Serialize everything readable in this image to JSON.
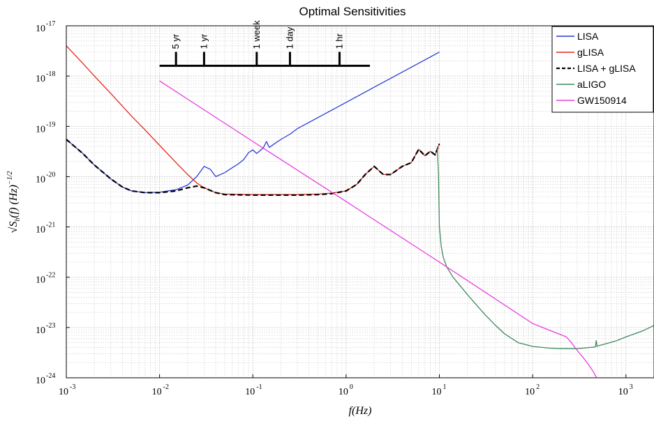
{
  "chart_data": {
    "type": "line",
    "title": "Optimal Sensitivities",
    "xlabel": "f(Hz)",
    "ylabel_base": "√S",
    "ylabel_sub": "h",
    "ylabel_rest": "(f) (Hz)",
    "ylabel_exp": "−1/2",
    "x_scale": "log",
    "y_scale": "log",
    "xlim": [
      0.001,
      2000
    ],
    "ylim": [
      1e-24,
      1e-17
    ],
    "grid": true,
    "legend_position": "top-right",
    "x_ticks": [
      {
        "value": 0.001,
        "base": "10",
        "exp": "-3"
      },
      {
        "value": 0.01,
        "base": "10",
        "exp": "-2"
      },
      {
        "value": 0.1,
        "base": "10",
        "exp": "-1"
      },
      {
        "value": 1,
        "base": "10",
        "exp": "0"
      },
      {
        "value": 10,
        "base": "10",
        "exp": "1"
      },
      {
        "value": 100,
        "base": "10",
        "exp": "2"
      },
      {
        "value": 1000,
        "base": "10",
        "exp": "3"
      }
    ],
    "y_ticks": [
      {
        "value": 1e-17,
        "base": "10",
        "exp": "-17"
      },
      {
        "value": 1e-18,
        "base": "10",
        "exp": "-18"
      },
      {
        "value": 1e-19,
        "base": "10",
        "exp": "-19"
      },
      {
        "value": 1e-20,
        "base": "10",
        "exp": "-20"
      },
      {
        "value": 1e-21,
        "base": "10",
        "exp": "-21"
      },
      {
        "value": 1e-22,
        "base": "10",
        "exp": "-22"
      },
      {
        "value": 1e-23,
        "base": "10",
        "exp": "-23"
      },
      {
        "value": 1e-24,
        "base": "10",
        "exp": "-24"
      }
    ],
    "timeline": {
      "x_range": [
        0.01,
        1.8
      ],
      "y": 1.6e-18,
      "marks": [
        {
          "x": 0.015,
          "label": "5 yr"
        },
        {
          "x": 0.03,
          "label": "1 yr"
        },
        {
          "x": 0.11,
          "label": "1 week"
        },
        {
          "x": 0.25,
          "label": "1 day"
        },
        {
          "x": 0.85,
          "label": "1 hr"
        }
      ]
    },
    "series": [
      {
        "name": "LISA",
        "color": "#2b3cd6",
        "dash": "",
        "x": [
          0.001,
          0.0015,
          0.002,
          0.003,
          0.004,
          0.005,
          0.007,
          0.01,
          0.015,
          0.02,
          0.025,
          0.03,
          0.035,
          0.04,
          0.05,
          0.06,
          0.07,
          0.08,
          0.09,
          0.1,
          0.11,
          0.12,
          0.13,
          0.14,
          0.15,
          0.17,
          0.2,
          0.25,
          0.3,
          0.5,
          1,
          2,
          3,
          5,
          7,
          10
        ],
        "y": [
          5.5e-20,
          2.9e-20,
          1.7e-20,
          9e-21,
          6.2e-21,
          5.2e-21,
          4.8e-21,
          4.9e-21,
          5.5e-21,
          6.8e-21,
          1e-20,
          1.6e-20,
          1.4e-20,
          1e-20,
          1.2e-20,
          1.5e-20,
          1.8e-20,
          2.2e-20,
          3e-20,
          3.4e-20,
          2.9e-20,
          3.3e-20,
          3.8e-20,
          5e-20,
          3.8e-20,
          4.5e-20,
          5.5e-20,
          7e-20,
          9e-20,
          1.5e-19,
          3e-19,
          6e-19,
          9e-19,
          1.5e-18,
          2.1e-18,
          3e-18
        ]
      },
      {
        "name": "gLISA",
        "color": "#e8261c",
        "dash": "",
        "x": [
          0.001,
          0.0015,
          0.002,
          0.003,
          0.005,
          0.007,
          0.01,
          0.015,
          0.02,
          0.025,
          0.03,
          0.04,
          0.05,
          0.1,
          0.2,
          0.3,
          0.5,
          0.7,
          1,
          1.3,
          1.6,
          2,
          2.5,
          3,
          4,
          5,
          6,
          7,
          8,
          9,
          10
        ],
        "y": [
          4e-18,
          1.8e-18,
          1e-18,
          4.5e-19,
          1.6e-19,
          8.5e-20,
          4.2e-20,
          1.9e-20,
          1.1e-20,
          7.5e-21,
          6e-21,
          4.8e-21,
          4.5e-21,
          4.4e-21,
          4.4e-21,
          4.4e-21,
          4.5e-21,
          4.7e-21,
          5.2e-21,
          7e-21,
          1.1e-20,
          1.6e-20,
          1.1e-20,
          1.1e-20,
          1.6e-20,
          1.9e-20,
          3.5e-20,
          2.6e-20,
          3.2e-20,
          2.7e-20,
          4.5e-20
        ]
      },
      {
        "name": "LISA + gLISA",
        "color": "#000000",
        "dash": "7,4",
        "x": [
          0.001,
          0.0015,
          0.002,
          0.003,
          0.004,
          0.005,
          0.007,
          0.01,
          0.015,
          0.02,
          0.025,
          0.03,
          0.04,
          0.05,
          0.1,
          0.2,
          0.3,
          0.5,
          0.7,
          1,
          1.3,
          1.6,
          2,
          2.5,
          3,
          4,
          5,
          6,
          7,
          8,
          9,
          10
        ],
        "y": [
          5.5e-20,
          2.9e-20,
          1.7e-20,
          9e-21,
          6.2e-21,
          5.2e-21,
          4.8e-21,
          4.8e-21,
          5.2e-21,
          6e-21,
          6.5e-21,
          6e-21,
          4.8e-21,
          4.4e-21,
          4.3e-21,
          4.3e-21,
          4.3e-21,
          4.4e-21,
          4.6e-21,
          5.2e-21,
          7e-21,
          1.1e-20,
          1.6e-20,
          1.1e-20,
          1.1e-20,
          1.6e-20,
          1.9e-20,
          3.5e-20,
          2.6e-20,
          3.2e-20,
          2.7e-20,
          4.5e-20
        ]
      },
      {
        "name": "aLIGO",
        "color": "#3f8a5e",
        "dash": "",
        "x": [
          9.5,
          9.8,
          10,
          10.5,
          11,
          12,
          14,
          17,
          20,
          25,
          30,
          40,
          50,
          70,
          100,
          150,
          200,
          300,
          400,
          470,
          480,
          490,
          500,
          600,
          800,
          1000,
          1500,
          2000
        ],
        "y": [
          4e-20,
          1e-20,
          1e-21,
          4e-22,
          2.5e-22,
          1.6e-22,
          1e-22,
          6.5e-23,
          4.5e-23,
          2.8e-23,
          1.9e-23,
          1.1e-23,
          7.5e-24,
          5e-24,
          4.2e-24,
          3.9e-24,
          3.8e-24,
          3.8e-24,
          4e-24,
          4.1e-24,
          5.5e-24,
          4.2e-24,
          4.3e-24,
          4.7e-24,
          5.5e-24,
          6.5e-24,
          8.5e-24,
          1.1e-23
        ]
      },
      {
        "name": "GW150914",
        "color": "#e83de0",
        "dash": "",
        "x": [
          0.01,
          0.1,
          1,
          10,
          100,
          230,
          260,
          300,
          350,
          400,
          450,
          500
        ],
        "y": [
          8e-19,
          5e-20,
          3.2e-21,
          2e-22,
          1.2e-23,
          6.5e-24,
          5e-24,
          3.5e-24,
          2.5e-24,
          1.8e-24,
          1.3e-24,
          9e-25
        ]
      }
    ]
  }
}
